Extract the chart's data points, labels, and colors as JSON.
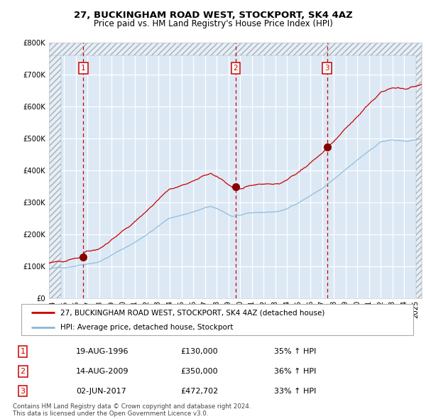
{
  "title1": "27, BUCKINGHAM ROAD WEST, STOCKPORT, SK4 4AZ",
  "title2": "Price paid vs. HM Land Registry's House Price Index (HPI)",
  "bg_color": "#dce9f5",
  "hatch_color": "#b8c8d8",
  "red_line_color": "#cc0000",
  "blue_line_color": "#88b8d8",
  "marker_color": "#880000",
  "vline_color": "#cc0000",
  "sales": [
    {
      "date_num": 1996.63,
      "price": 130000,
      "label": "1"
    },
    {
      "date_num": 2009.62,
      "price": 350000,
      "label": "2"
    },
    {
      "date_num": 2017.42,
      "price": 472702,
      "label": "3"
    }
  ],
  "legend_entry1": "27, BUCKINGHAM ROAD WEST, STOCKPORT, SK4 4AZ (detached house)",
  "legend_entry2": "HPI: Average price, detached house, Stockport",
  "table_rows": [
    {
      "num": "1",
      "date": "19-AUG-1996",
      "price": "£130,000",
      "change": "35% ↑ HPI"
    },
    {
      "num": "2",
      "date": "14-AUG-2009",
      "price": "£350,000",
      "change": "36% ↑ HPI"
    },
    {
      "num": "3",
      "date": "02-JUN-2017",
      "price": "£472,702",
      "change": "33% ↑ HPI"
    }
  ],
  "footer": "Contains HM Land Registry data © Crown copyright and database right 2024.\nThis data is licensed under the Open Government Licence v3.0.",
  "ylim": [
    0,
    800000
  ],
  "xlim_start": 1993.7,
  "xlim_end": 2025.5
}
